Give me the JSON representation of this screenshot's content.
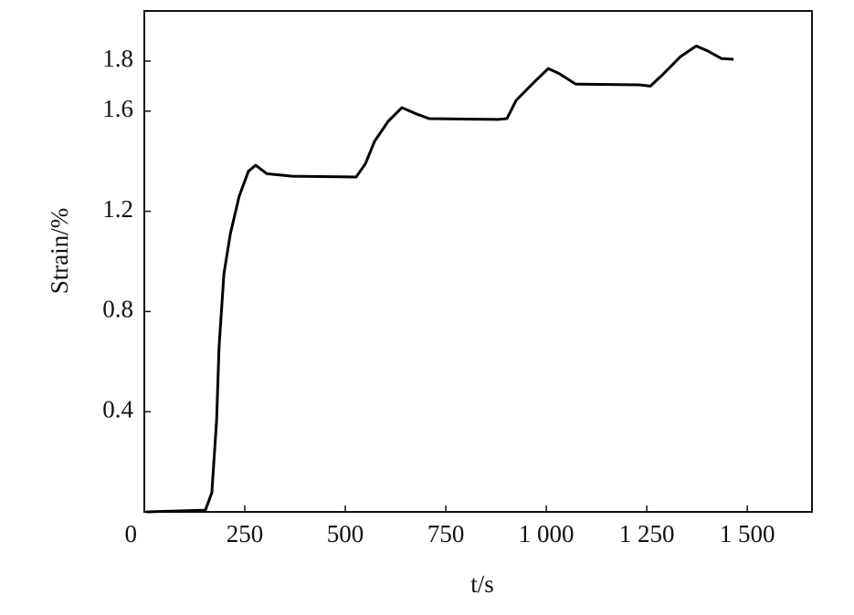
{
  "chart_data": {
    "type": "line",
    "x_label": "t/s",
    "y_label": "Strain/%",
    "x": [
      5,
      152,
      168,
      180,
      186,
      198,
      214,
      236,
      259,
      277,
      305,
      368,
      527,
      550,
      573,
      607,
      641,
      675,
      709,
      880,
      902,
      925,
      970,
      1005,
      1032,
      1073,
      1232,
      1259,
      1289,
      1334,
      1373,
      1402,
      1436,
      1466
    ],
    "series": [
      {
        "color": "#000000",
        "values": [
          0,
          0.007,
          0.077,
          0.37,
          0.66,
          0.95,
          1.11,
          1.26,
          1.36,
          1.384,
          1.35,
          1.34,
          1.337,
          1.39,
          1.48,
          1.56,
          1.614,
          1.59,
          1.57,
          1.567,
          1.57,
          1.643,
          1.716,
          1.77,
          1.75,
          1.708,
          1.705,
          1.7,
          1.745,
          1.818,
          1.86,
          1.84,
          1.81,
          1.807
        ]
      }
    ],
    "xlim": [
      0,
      1661
    ],
    "ylim": [
      0,
      2.0
    ],
    "xticks": [
      0,
      250,
      500,
      750,
      {
        "value": 1000,
        "label": "1 000"
      },
      {
        "value": 1250,
        "label": "1 250"
      },
      {
        "value": 1500,
        "label": "1 500"
      }
    ],
    "yticks": [
      0.4,
      0.8,
      1.2,
      1.6,
      1.8
    ]
  }
}
